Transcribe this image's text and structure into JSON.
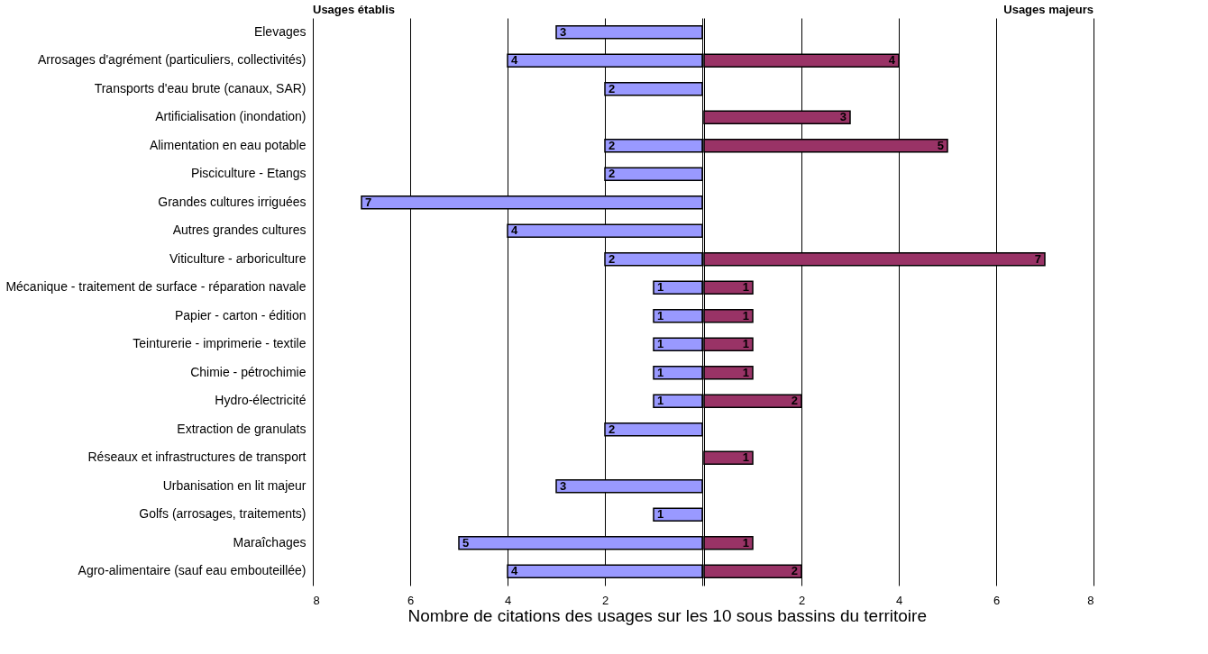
{
  "chart_data": [
    {
      "type": "bar",
      "orientation": "horizontal",
      "title": "Usages établis",
      "categories": [
        "Elevages",
        "Arrosages d'agrément (particuliers, collectivités)",
        "Transports d'eau brute (canaux, SAR)",
        "Artificialisation (inondation)",
        "Alimentation en eau potable",
        "Pisciculture - Etangs",
        "Grandes cultures irriguées",
        "Autres grandes cultures",
        "Viticulture - arboriculture",
        "Mécanique - traitement de surface - réparation navale",
        "Papier - carton - édition",
        "Teinturerie - imprimerie - textile",
        "Chimie - pétrochimie",
        "Hydro-électricité",
        "Extraction de granulats",
        "Réseaux et infrastructures de transport",
        "Urbanisation en lit majeur",
        "Golfs (arrosages, traitements)",
        "Maraîchages",
        "Agro-alimentaire (sauf eau embouteillée)"
      ],
      "series": [
        {
          "color": "#9999ff",
          "values": [
            3,
            4,
            2,
            null,
            2,
            2,
            7,
            4,
            2,
            1,
            1,
            1,
            1,
            1,
            2,
            null,
            3,
            1,
            5,
            4
          ]
        }
      ],
      "data_labels": true,
      "xlabel": "Nombre de citations des usages sur les 10 sous bassins du territoire",
      "xlim": [
        8,
        0
      ],
      "xticks": [
        8,
        6,
        4,
        2,
        {
          "value": 0,
          "label": null
        }
      ],
      "grid": "x"
    },
    {
      "type": "bar",
      "orientation": "horizontal",
      "title": "Usages majeurs",
      "categories": [
        "Elevages",
        "Arrosages d'agrément (particuliers, collectivités)",
        "Transports d'eau brute (canaux, SAR)",
        "Artificialisation (inondation)",
        "Alimentation en eau potable",
        "Pisciculture - Etangs",
        "Grandes cultures irriguées",
        "Autres grandes cultures",
        "Viticulture - arboriculture",
        "Mécanique - traitement de surface - réparation navale",
        "Papier - carton - édition",
        "Teinturerie - imprimerie - textile",
        "Chimie - pétrochimie",
        "Hydro-électricité",
        "Extraction de granulats",
        "Réseaux et infrastructures de transport",
        "Urbanisation en lit majeur",
        "Golfs (arrosages, traitements)",
        "Maraîchages",
        "Agro-alimentaire (sauf eau embouteillée)"
      ],
      "series": [
        {
          "color": "#993366",
          "values": [
            null,
            4,
            null,
            3,
            5,
            null,
            null,
            null,
            7,
            1,
            1,
            1,
            1,
            2,
            null,
            1,
            null,
            null,
            1,
            2
          ]
        }
      ],
      "data_labels": true,
      "xlim": [
        0,
        8
      ],
      "xticks": [
        {
          "value": 0,
          "label": null
        },
        2,
        4,
        6,
        8
      ],
      "grid": "x",
      "tick_labels": "x"
    }
  ]
}
